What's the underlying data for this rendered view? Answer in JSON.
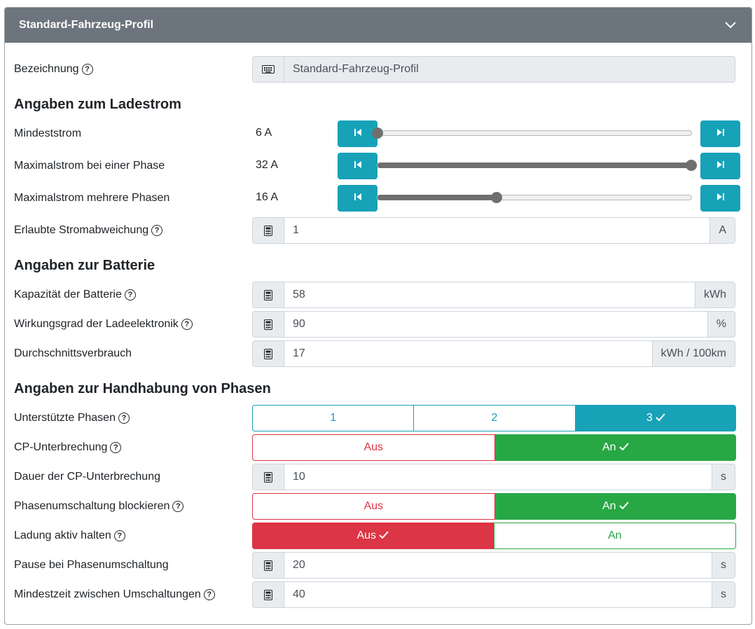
{
  "header": {
    "title": "Standard-Fahrzeug-Profil"
  },
  "fields": {
    "bezeichnung": {
      "label": "Bezeichnung",
      "value": "Standard-Fahrzeug-Profil"
    },
    "section_ladestrom": "Angaben zum Ladestrom",
    "mindeststrom": {
      "label": "Mindeststrom",
      "value": "6 A",
      "level": 0.0
    },
    "max_einphasig": {
      "label": "Maximalstrom bei einer Phase",
      "value": "32 A",
      "level": 1.0
    },
    "max_mehrphasig": {
      "label": "Maximalstrom mehrere Phasen",
      "value": "16 A",
      "level": 0.38
    },
    "stromabweichung": {
      "label": "Erlaubte Stromabweichung",
      "value": "1",
      "unit": "A"
    },
    "section_batterie": "Angaben zur Batterie",
    "kapazitaet": {
      "label": "Kapazität der Batterie",
      "value": "58",
      "unit": "kWh"
    },
    "wirkungsgrad": {
      "label": "Wirkungsgrad der Ladeelektronik",
      "value": "90",
      "unit": "%"
    },
    "verbrauch": {
      "label": "Durchschnittsverbrauch",
      "value": "17",
      "unit": "kWh / 100km"
    },
    "section_phasen": "Angaben zur Handhabung von Phasen",
    "phasen": {
      "label": "Unterstützte Phasen",
      "options": [
        "1",
        "2",
        "3"
      ],
      "selected": "3"
    },
    "cp_unterbrechung": {
      "label": "CP-Unterbrechung",
      "off": "Aus",
      "on": "An",
      "selected": "An"
    },
    "cp_dauer": {
      "label": "Dauer der CP-Unterbrechung",
      "value": "10",
      "unit": "s"
    },
    "phasen_block": {
      "label": "Phasenumschaltung blockieren",
      "off": "Aus",
      "on": "An",
      "selected": "An"
    },
    "ladung_aktiv": {
      "label": "Ladung aktiv halten",
      "off": "Aus",
      "on": "An",
      "selected": "Aus"
    },
    "pause": {
      "label": "Pause bei Phasenumschaltung",
      "value": "20",
      "unit": "s"
    },
    "mindestzeit": {
      "label": "Mindestzeit zwischen Umschaltungen",
      "value": "40",
      "unit": "s"
    }
  },
  "colors": {
    "header": "#6c757d",
    "info": "#17a2b8",
    "success": "#28a745",
    "danger": "#dc3545"
  },
  "icons": {
    "collapse": "chevron-down-icon",
    "text": "keyboard-icon",
    "number": "calculator-icon",
    "help": "question-circle-icon",
    "min": "step-backward-icon",
    "max": "step-forward-icon",
    "check": "check-icon"
  }
}
